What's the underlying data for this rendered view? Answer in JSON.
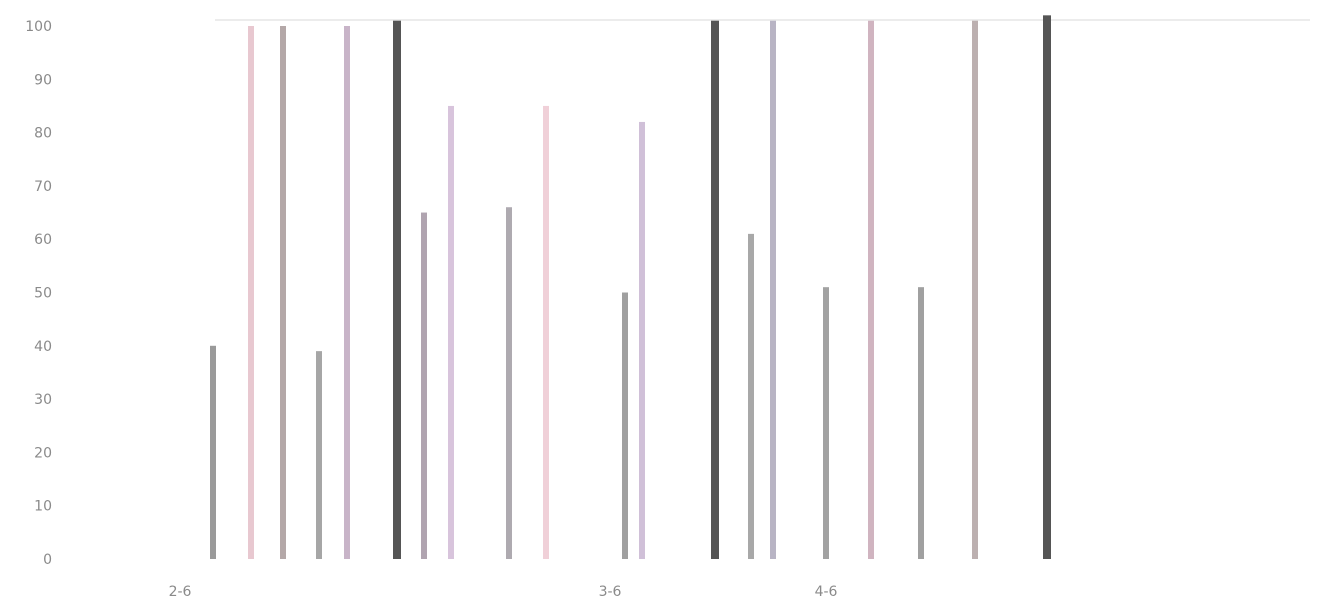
{
  "chart_data": {
    "type": "bar",
    "title": "",
    "xlabel": "",
    "ylabel": "",
    "ylim": [
      0,
      100
    ],
    "y_ticks": [
      0,
      10,
      20,
      30,
      40,
      50,
      60,
      70,
      80,
      90,
      100
    ],
    "y_tick_labels": [
      "0",
      "10",
      "20",
      "30",
      "40",
      "50",
      "60",
      "70",
      "80",
      "90",
      "100"
    ],
    "grid": false,
    "legend": "none",
    "category_labels": [
      "2-6",
      "3-6",
      "4-6"
    ],
    "bars": [
      {
        "value": 40,
        "color": "#9a9a9a"
      },
      {
        "value": 100,
        "color": "#e8c8d0"
      },
      {
        "value": 100,
        "color": "#b4a8a8"
      },
      {
        "value": 39,
        "color": "#a6a6a6"
      },
      {
        "value": 100,
        "color": "#c8b4c8"
      },
      {
        "value": 101,
        "color": "#555555"
      },
      {
        "value": 65,
        "color": "#b0a4b0"
      },
      {
        "value": 85,
        "color": "#d8c4dc"
      },
      {
        "value": 66,
        "color": "#aeaab0"
      },
      {
        "value": 85,
        "color": "#f0d0d8"
      },
      {
        "value": 50,
        "color": "#a0a0a0"
      },
      {
        "value": 82,
        "color": "#d0c0d8"
      },
      {
        "value": 101,
        "color": "#555555"
      },
      {
        "value": 61,
        "color": "#a8a8a8"
      },
      {
        "value": 101,
        "color": "#b8b4c4"
      },
      {
        "value": 51,
        "color": "#a2a2a2"
      },
      {
        "value": 101,
        "color": "#d0b4c0"
      },
      {
        "value": 51,
        "color": "#a0a0a0"
      },
      {
        "value": 101,
        "color": "#bcb0b0"
      },
      {
        "value": 102,
        "color": "#555555"
      }
    ]
  }
}
